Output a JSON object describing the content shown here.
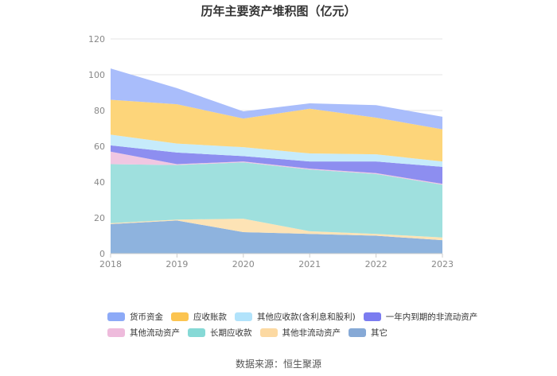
{
  "chart_data": {
    "type": "area",
    "stacked": true,
    "title": "历年主要资产堆积图（亿元）",
    "x": [
      "2018",
      "2019",
      "2020",
      "2021",
      "2022",
      "2023"
    ],
    "ylim": [
      0,
      120
    ],
    "yticks": [
      0,
      20,
      40,
      60,
      80,
      100,
      120
    ],
    "xlabel": "",
    "ylabel": "",
    "grid": true,
    "legend_position": "bottom",
    "series": [
      {
        "name": "其它",
        "color": "#8eb3de",
        "values": [
          16.5,
          18.5,
          12.0,
          11.0,
          10.0,
          7.5
        ]
      },
      {
        "name": "其他非流动资产",
        "color": "#fde3b5",
        "values": [
          0.5,
          0.5,
          7.5,
          1.5,
          1.0,
          1.5
        ]
      },
      {
        "name": "长期应收款",
        "color": "#9fe0de",
        "values": [
          33.0,
          30.5,
          31.5,
          34.5,
          33.5,
          29.5
        ]
      },
      {
        "name": "其他流动资产",
        "color": "#f0c7e2",
        "values": [
          7.0,
          0.5,
          0.5,
          0.5,
          0.5,
          0.5
        ]
      },
      {
        "name": "一年内到期的非流动资产",
        "color": "#8d8ef0",
        "values": [
          3.5,
          6.5,
          3.0,
          4.0,
          6.5,
          9.5
        ]
      },
      {
        "name": "其他应收款(含利息和股利)",
        "color": "#c6ebfb",
        "values": [
          6.0,
          5.0,
          5.0,
          4.5,
          4.0,
          3.0
        ]
      },
      {
        "name": "应收账款",
        "color": "#fdd57a",
        "values": [
          19.5,
          22.0,
          16.0,
          25.0,
          20.5,
          18.0
        ]
      },
      {
        "name": "货币资金",
        "color": "#a9bdfb",
        "values": [
          17.5,
          9.0,
          4.0,
          3.0,
          7.0,
          7.0
        ]
      }
    ]
  },
  "legend": {
    "row1": [
      {
        "label": "货币资金",
        "color": "#8daaf7"
      },
      {
        "label": "应收账款",
        "color": "#fcc450"
      },
      {
        "label": "其他应收款(含利息和股利)",
        "color": "#b2e3fb"
      },
      {
        "label": "一年内到期的非流动资产",
        "color": "#7b7cf0"
      }
    ],
    "row2": [
      {
        "label": "其他流动资产",
        "color": "#eebbdc"
      },
      {
        "label": "长期应收款",
        "color": "#86d9d6"
      },
      {
        "label": "其他非流动资产",
        "color": "#fcd9a2"
      },
      {
        "label": "其它",
        "color": "#86a9d6"
      }
    ]
  },
  "source": "数据来源：恒生聚源"
}
